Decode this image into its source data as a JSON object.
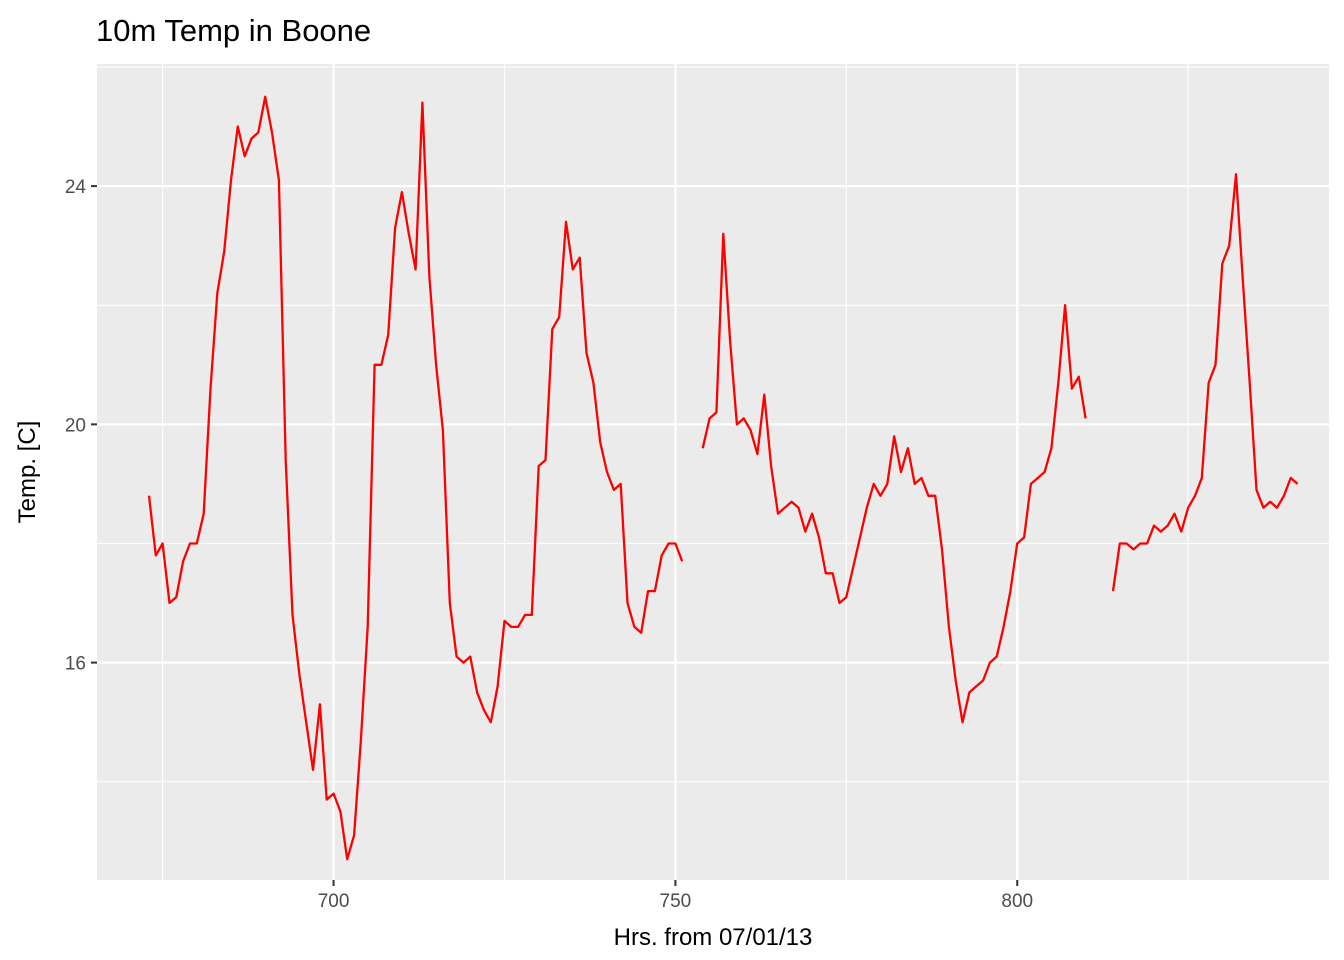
{
  "chart_data": {
    "type": "line",
    "title": "10m Temp in Boone",
    "xlabel": "Hrs. from 07/01/13",
    "ylabel": "Temp. [C]",
    "xlim": [
      665.4,
      845.6
    ],
    "ylim": [
      12.35,
      26.05
    ],
    "x_ticks": [
      700,
      750,
      800
    ],
    "y_ticks": [
      16,
      20,
      24
    ],
    "grid": true,
    "legend": "none",
    "colors": {
      "line": "#ff0000",
      "panel": "#ebebeb",
      "grid": "#ffffff"
    },
    "series": [
      {
        "segments": [
          [
            [
              673,
              18.8
            ],
            [
              674,
              17.8
            ],
            [
              675,
              18.0
            ],
            [
              676,
              17.0
            ],
            [
              677,
              17.1
            ],
            [
              678,
              17.7
            ],
            [
              679,
              18.0
            ],
            [
              680,
              18.0
            ],
            [
              681,
              18.5
            ],
            [
              682,
              20.6
            ],
            [
              683,
              22.2
            ],
            [
              684,
              22.9
            ],
            [
              685,
              24.1
            ],
            [
              686,
              25.0
            ],
            [
              687,
              24.5
            ],
            [
              688,
              24.8
            ],
            [
              689,
              24.9
            ],
            [
              690,
              25.5
            ],
            [
              691,
              24.9
            ],
            [
              692,
              24.1
            ],
            [
              693,
              19.4
            ],
            [
              694,
              16.8
            ],
            [
              695,
              15.8
            ],
            [
              696,
              15.0
            ],
            [
              697,
              14.2
            ],
            [
              698,
              15.3
            ],
            [
              699,
              13.7
            ],
            [
              700,
              13.8
            ],
            [
              701,
              13.5
            ],
            [
              702,
              12.7
            ],
            [
              703,
              13.1
            ],
            [
              704,
              14.7
            ],
            [
              705,
              16.6
            ],
            [
              706,
              21.0
            ],
            [
              707,
              21.0
            ],
            [
              708,
              21.5
            ],
            [
              709,
              23.3
            ],
            [
              710,
              23.9
            ],
            [
              711,
              23.2
            ],
            [
              712,
              22.6
            ],
            [
              713,
              25.4
            ],
            [
              714,
              22.5
            ],
            [
              715,
              21.0
            ],
            [
              716,
              19.9
            ],
            [
              717,
              17.0
            ],
            [
              718,
              16.1
            ],
            [
              719,
              16.0
            ],
            [
              720,
              16.1
            ],
            [
              721,
              15.5
            ],
            [
              722,
              15.2
            ],
            [
              723,
              15.0
            ],
            [
              724,
              15.6
            ],
            [
              725,
              16.7
            ],
            [
              726,
              16.6
            ],
            [
              727,
              16.6
            ],
            [
              728,
              16.8
            ],
            [
              729,
              16.8
            ],
            [
              730,
              19.3
            ],
            [
              731,
              19.4
            ],
            [
              732,
              21.6
            ],
            [
              733,
              21.8
            ],
            [
              734,
              23.4
            ],
            [
              735,
              22.6
            ],
            [
              736,
              22.8
            ],
            [
              737,
              21.2
            ],
            [
              738,
              20.7
            ],
            [
              739,
              19.7
            ],
            [
              740,
              19.2
            ],
            [
              741,
              18.9
            ],
            [
              742,
              19.0
            ],
            [
              743,
              17.0
            ],
            [
              744,
              16.6
            ],
            [
              745,
              16.5
            ],
            [
              746,
              17.2
            ],
            [
              747,
              17.2
            ],
            [
              748,
              17.8
            ],
            [
              749,
              18.0
            ],
            [
              750,
              18.0
            ],
            [
              751,
              17.7
            ]
          ],
          [
            [
              754,
              19.6
            ],
            [
              755,
              20.1
            ],
            [
              756,
              20.2
            ],
            [
              757,
              23.2
            ],
            [
              758,
              21.4
            ],
            [
              759,
              20.0
            ],
            [
              760,
              20.1
            ],
            [
              761,
              19.9
            ],
            [
              762,
              19.5
            ],
            [
              763,
              20.5
            ],
            [
              764,
              19.3
            ],
            [
              765,
              18.5
            ],
            [
              766,
              18.6
            ],
            [
              767,
              18.7
            ],
            [
              768,
              18.6
            ],
            [
              769,
              18.2
            ],
            [
              770,
              18.5
            ],
            [
              771,
              18.1
            ],
            [
              772,
              17.5
            ],
            [
              773,
              17.5
            ],
            [
              774,
              17.0
            ],
            [
              775,
              17.1
            ],
            [
              776,
              17.6
            ],
            [
              777,
              18.1
            ],
            [
              778,
              18.6
            ],
            [
              779,
              19.0
            ],
            [
              780,
              18.8
            ],
            [
              781,
              19.0
            ],
            [
              782,
              19.8
            ],
            [
              783,
              19.2
            ],
            [
              784,
              19.6
            ],
            [
              785,
              19.0
            ],
            [
              786,
              19.1
            ],
            [
              787,
              18.8
            ],
            [
              788,
              18.8
            ],
            [
              789,
              17.9
            ],
            [
              790,
              16.6
            ],
            [
              791,
              15.7
            ],
            [
              792,
              15.0
            ],
            [
              793,
              15.5
            ],
            [
              794,
              15.6
            ],
            [
              795,
              15.7
            ],
            [
              796,
              16.0
            ],
            [
              797,
              16.1
            ],
            [
              798,
              16.6
            ],
            [
              799,
              17.2
            ],
            [
              800,
              18.0
            ],
            [
              801,
              18.1
            ],
            [
              802,
              19.0
            ],
            [
              803,
              19.1
            ],
            [
              804,
              19.2
            ],
            [
              805,
              19.6
            ],
            [
              806,
              20.7
            ],
            [
              807,
              22.0
            ],
            [
              808,
              20.6
            ],
            [
              809,
              20.8
            ],
            [
              810,
              20.1
            ]
          ],
          [
            [
              814,
              17.2
            ],
            [
              815,
              18.0
            ],
            [
              816,
              18.0
            ],
            [
              817,
              17.9
            ],
            [
              818,
              18.0
            ],
            [
              819,
              18.0
            ],
            [
              820,
              18.3
            ],
            [
              821,
              18.2
            ],
            [
              822,
              18.3
            ],
            [
              823,
              18.5
            ],
            [
              824,
              18.2
            ],
            [
              825,
              18.6
            ],
            [
              826,
              18.8
            ],
            [
              827,
              19.1
            ],
            [
              828,
              20.7
            ],
            [
              829,
              21.0
            ],
            [
              830,
              22.7
            ],
            [
              831,
              23.0
            ],
            [
              832,
              24.2
            ],
            [
              833,
              22.4
            ],
            [
              834,
              20.7
            ],
            [
              835,
              18.9
            ],
            [
              836,
              18.6
            ],
            [
              837,
              18.7
            ],
            [
              838,
              18.6
            ],
            [
              839,
              18.8
            ],
            [
              840,
              19.1
            ],
            [
              841,
              19.0
            ]
          ]
        ]
      }
    ]
  }
}
